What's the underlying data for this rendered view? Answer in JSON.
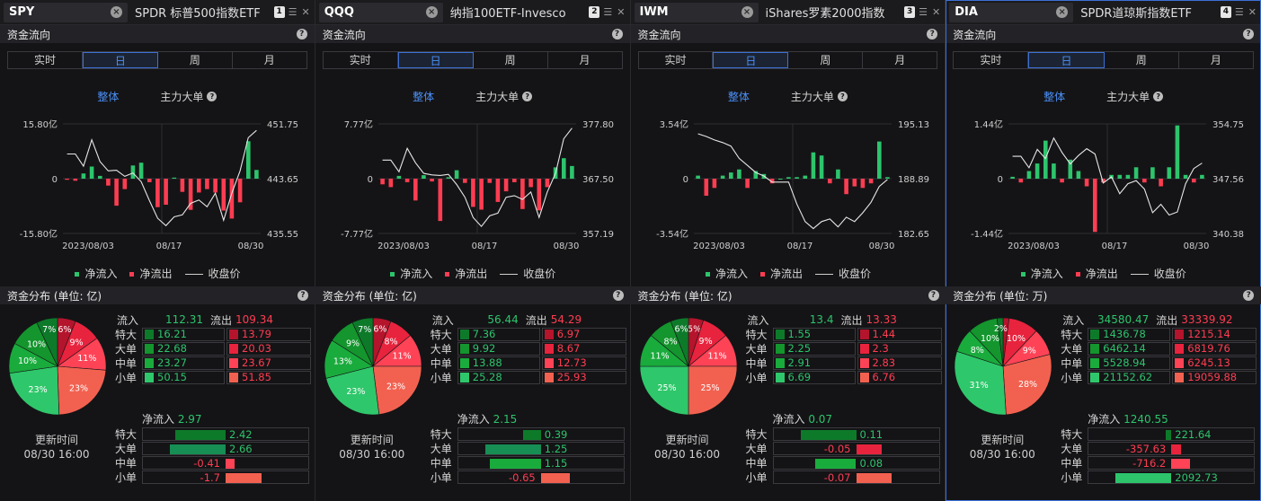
{
  "labels": {
    "flow_title": "资金流向",
    "periods": [
      "实时",
      "日",
      "周",
      "月"
    ],
    "active_period": 1,
    "sub_overall": "整体",
    "sub_main": "主力大单",
    "legend_in": "净流入",
    "legend_out": "净流出",
    "legend_close": "收盘价",
    "dist_title_yi": "资金分布 (单位: 亿)",
    "dist_title_wan": "资金分布 (单位: 万)",
    "inflow": "流入",
    "outflow": "流出",
    "rows": [
      "特大",
      "大单",
      "中单",
      "小单"
    ],
    "net_inflow": "净流入",
    "update_label": "更新时间",
    "update_time": "08/30 16:00",
    "date_start": "2023/08/03",
    "date_mid": "08/17",
    "date_end": "08/30"
  },
  "colors": {
    "green": "#2dc46c",
    "red": "#ff3d52",
    "accent": "#4a8ff7",
    "pie_red": [
      "#b4142c",
      "#e8233d",
      "#ff4356",
      "#f26150"
    ],
    "pie_green": [
      "#0d7a2a",
      "#14952d",
      "#1aab3d",
      "#2fc76b"
    ]
  },
  "panels": [
    {
      "ticker": "SPY",
      "name": "SPDR 标普500指数ETF",
      "num": "1",
      "active": false,
      "unit": "yi",
      "chart_data": {
        "type": "bar",
        "y_left_max": "15.80亿",
        "y_left_mid": "0",
        "y_left_min": "-15.80亿",
        "y_right_max": "451.75",
        "y_right_mid": "443.65",
        "y_right_min": "435.55",
        "ylim": [
          -15.8,
          15.8
        ],
        "price_lim": [
          435.55,
          451.75
        ],
        "flows": [
          -0.3,
          -0.6,
          1.5,
          3.5,
          0.8,
          -2.0,
          -7.8,
          -3.0,
          3.8,
          4.6,
          -1.0,
          -8.2,
          -7.5,
          0.3,
          -3.8,
          -9.0,
          -4.0,
          -3.0,
          -4.0,
          -9.2,
          -11.5,
          -6.8,
          10.8,
          2.5
        ],
        "prices": [
          447.3,
          447.3,
          445.5,
          449.4,
          446.2,
          444.8,
          444.9,
          444.0,
          444.5,
          443.2,
          440.4,
          437.8,
          436.7,
          438.0,
          438.3,
          440.0,
          440.5,
          439.5,
          441.5,
          437.5,
          441.5,
          444.8,
          449.7,
          450.8
        ]
      },
      "dist": {
        "in_total": "112.31",
        "out_total": "109.34",
        "in": [
          "16.21",
          "22.68",
          "23.27",
          "50.15"
        ],
        "out": [
          "13.79",
          "20.03",
          "23.67",
          "51.85"
        ],
        "in_vals": [
          16.21,
          22.68,
          23.27,
          50.15
        ],
        "out_vals": [
          13.79,
          20.03,
          23.67,
          51.85
        ],
        "pie": [
          {
            "label": "6%",
            "value": 6
          },
          {
            "label": "9%",
            "value": 9
          },
          {
            "label": "11%",
            "value": 11
          },
          {
            "label": "23%",
            "value": 23
          },
          {
            "label": "23%",
            "value": 23
          },
          {
            "label": "10%",
            "value": 10
          },
          {
            "label": "10%",
            "value": 10
          },
          {
            "label": "7%",
            "value": 7
          }
        ],
        "net_total": "2.97",
        "net": [
          "2.42",
          "2.66",
          "-0.41",
          "-1.7"
        ],
        "net_vals": [
          2.42,
          2.66,
          -0.41,
          -1.7
        ]
      }
    },
    {
      "ticker": "QQQ",
      "name": "纳指100ETF-Invesco",
      "num": "2",
      "active": false,
      "unit": "yi",
      "chart_data": {
        "type": "bar",
        "y_left_max": "7.77亿",
        "y_left_mid": "0",
        "y_left_min": "-7.77亿",
        "y_right_max": "377.80",
        "y_right_mid": "367.50",
        "y_right_min": "357.19",
        "ylim": [
          -7.77,
          7.77
        ],
        "price_lim": [
          357.19,
          377.8
        ],
        "flows": [
          -0.8,
          -1.2,
          0.4,
          -0.5,
          -3.1,
          0.5,
          -0.4,
          -6.0,
          0.2,
          1.2,
          -0.6,
          -4.0,
          -4.4,
          -0.6,
          -3.3,
          -1.8,
          -0.5,
          -4.3,
          -1.2,
          -4.5,
          -1.2,
          1.6,
          2.9,
          1.8
        ],
        "prices": [
          371.0,
          371.0,
          368.8,
          373.2,
          370.5,
          368.5,
          368.2,
          368.1,
          368.3,
          366.4,
          364.0,
          360.2,
          358.5,
          360.5,
          361.0,
          364.0,
          364.3,
          363.6,
          365.0,
          360.2,
          365.0,
          368.5,
          375.0,
          377.0
        ]
      },
      "dist": {
        "in_total": "56.44",
        "out_total": "54.29",
        "in": [
          "7.36",
          "9.92",
          "13.88",
          "25.28"
        ],
        "out": [
          "6.97",
          "8.67",
          "12.73",
          "25.93"
        ],
        "in_vals": [
          7.36,
          9.92,
          13.88,
          25.28
        ],
        "out_vals": [
          6.97,
          8.67,
          12.73,
          25.93
        ],
        "pie": [
          {
            "label": "6%",
            "value": 6
          },
          {
            "label": "8%",
            "value": 8
          },
          {
            "label": "11%",
            "value": 11
          },
          {
            "label": "23%",
            "value": 23
          },
          {
            "label": "23%",
            "value": 23
          },
          {
            "label": "13%",
            "value": 13
          },
          {
            "label": "9%",
            "value": 9
          },
          {
            "label": "7%",
            "value": 7
          }
        ],
        "net_total": "2.15",
        "net": [
          "0.39",
          "1.25",
          "1.15",
          "-0.65"
        ],
        "net_vals": [
          0.39,
          1.25,
          1.15,
          -0.65
        ]
      }
    },
    {
      "ticker": "IWM",
      "name": "iShares罗素2000指数",
      "num": "3",
      "active": false,
      "unit": "yi",
      "chart_data": {
        "type": "bar",
        "y_left_max": "3.54亿",
        "y_left_mid": "0",
        "y_left_min": "-3.54亿",
        "y_right_max": "195.13",
        "y_right_mid": "188.89",
        "y_right_min": "182.65",
        "ylim": [
          -3.54,
          3.54
        ],
        "price_lim": [
          182.65,
          195.13
        ],
        "flows": [
          0.2,
          -1.1,
          -0.6,
          0.2,
          0.4,
          0.6,
          -0.6,
          0.5,
          0.3,
          -0.3,
          0.0,
          0.1,
          0.1,
          0.2,
          1.7,
          1.5,
          -0.3,
          0.6,
          -1.0,
          -0.5,
          -0.6,
          -0.3,
          2.4,
          0.1
        ],
        "prices": [
          194.0,
          193.7,
          193.3,
          193.0,
          192.6,
          191.2,
          190.4,
          189.6,
          189.2,
          188.5,
          188.5,
          188.5,
          186.0,
          184.0,
          183.2,
          184.0,
          184.3,
          183.4,
          184.5,
          184.0,
          185.0,
          186.2,
          188.0,
          188.8
        ]
      },
      "dist": {
        "in_total": "13.4",
        "out_total": "13.33",
        "in": [
          "1.55",
          "2.25",
          "2.91",
          "6.69"
        ],
        "out": [
          "1.44",
          "2.3",
          "2.83",
          "6.76"
        ],
        "in_vals": [
          1.55,
          2.25,
          2.91,
          6.69
        ],
        "out_vals": [
          1.44,
          2.3,
          2.83,
          6.76
        ],
        "pie": [
          {
            "label": "5%",
            "value": 5
          },
          {
            "label": "9%",
            "value": 9
          },
          {
            "label": "11%",
            "value": 11
          },
          {
            "label": "25%",
            "value": 25
          },
          {
            "label": "25%",
            "value": 25
          },
          {
            "label": "11%",
            "value": 11
          },
          {
            "label": "8%",
            "value": 8
          },
          {
            "label": "6%",
            "value": 6
          }
        ],
        "net_total": "0.07",
        "net": [
          "0.11",
          "-0.05",
          "0.08",
          "-0.07"
        ],
        "net_vals": [
          0.11,
          -0.05,
          0.08,
          -0.07
        ]
      }
    },
    {
      "ticker": "DIA",
      "name": "SPDR道琼斯指数ETF",
      "num": "4",
      "active": true,
      "unit": "wan",
      "chart_data": {
        "type": "bar",
        "y_left_max": "1.44亿",
        "y_left_mid": "0",
        "y_left_min": "-1.44亿",
        "y_right_max": "354.75",
        "y_right_mid": "347.56",
        "y_right_min": "340.38",
        "ylim": [
          -1.44,
          1.44
        ],
        "price_lim": [
          340.38,
          354.75
        ],
        "flows": [
          0.05,
          -0.1,
          0.2,
          0.4,
          1.0,
          0.4,
          -0.1,
          0.5,
          0.2,
          -0.2,
          -1.4,
          -0.1,
          0.1,
          0.1,
          0.1,
          0.3,
          -0.1,
          0.3,
          -0.2,
          0.3,
          1.4,
          0.1,
          -0.1,
          0.1
        ],
        "prices": [
          350.5,
          350.5,
          349.0,
          351.4,
          350.2,
          352.9,
          351.0,
          349.5,
          350.6,
          351.5,
          350.8,
          347.0,
          347.8,
          345.6,
          346.9,
          347.3,
          346.2,
          343.1,
          344.2,
          342.8,
          343.2,
          346.9,
          348.9,
          349.6
        ]
      },
      "dist": {
        "in_total": "34580.47",
        "out_total": "33339.92",
        "in": [
          "1436.78",
          "6462.14",
          "5528.94",
          "21152.62"
        ],
        "out": [
          "1215.14",
          "6819.76",
          "6245.13",
          "19059.88"
        ],
        "in_vals": [
          1436.78,
          6462.14,
          5528.94,
          21152.62
        ],
        "out_vals": [
          1215.14,
          6819.76,
          6245.13,
          19059.88
        ],
        "pie": [
          {
            "label": "",
            "value": 2
          },
          {
            "label": "10%",
            "value": 10
          },
          {
            "label": "9%",
            "value": 9
          },
          {
            "label": "28%",
            "value": 28
          },
          {
            "label": "31%",
            "value": 31
          },
          {
            "label": "8%",
            "value": 8
          },
          {
            "label": "10%",
            "value": 10
          },
          {
            "label": "2%",
            "value": 2
          }
        ],
        "net_total": "1240.55",
        "net": [
          "221.64",
          "-357.63",
          "-716.2",
          "2092.73"
        ],
        "net_vals": [
          221.64,
          -357.63,
          -716.2,
          2092.73
        ]
      }
    }
  ]
}
